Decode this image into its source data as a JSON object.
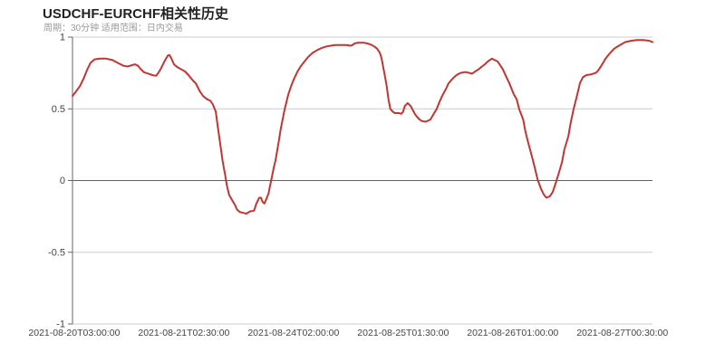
{
  "header": {
    "title": "USDCHF-EURCHF相关性历史",
    "subtitle": "周期：30分钟 适用范围：日内交易"
  },
  "chart_data": {
    "type": "line",
    "title": "USDCHF-EURCHF相关性历史",
    "subtitle": "周期：30分钟 适用范围：日内交易",
    "xlabel": "",
    "ylabel": "",
    "ylim": [
      -1,
      1
    ],
    "grid": true,
    "legend_position": "none",
    "y_ticks": [
      {
        "label": "1",
        "value": 1
      },
      {
        "label": "0.5",
        "value": 0.5
      },
      {
        "label": "0",
        "value": 0
      },
      {
        "label": "-0.5",
        "value": -0.5
      },
      {
        "label": "-1",
        "value": -1
      }
    ],
    "x_ticks": [
      {
        "label": "2021-08-20T03:00:00",
        "pos_pct": 0.3
      },
      {
        "label": "2021-08-21T02:30:00",
        "pos_pct": 19.2
      },
      {
        "label": "2021-08-24T02:00:00",
        "pos_pct": 38.1
      },
      {
        "label": "2021-08-25T01:30:00",
        "pos_pct": 57.0
      },
      {
        "label": "2021-08-26T01:00:00",
        "pos_pct": 75.9
      },
      {
        "label": "2021-08-27T00:30:00",
        "pos_pct": 94.8
      }
    ],
    "colors": {
      "line": "#c23531",
      "grid_light": "#cccccc",
      "grid_zero": "#616161",
      "axis": "#666666",
      "tick_label": "#444444",
      "title": "#222222",
      "subtitle": "#999999"
    },
    "series": [
      {
        "name": "USDCHF-EURCHF 相关性",
        "color": "#c23531",
        "points": [
          [
            0.0,
            0.59
          ],
          [
            0.6,
            0.62
          ],
          [
            1.3,
            0.66
          ],
          [
            1.9,
            0.71
          ],
          [
            2.5,
            0.77
          ],
          [
            3.1,
            0.82
          ],
          [
            3.8,
            0.845
          ],
          [
            4.7,
            0.85
          ],
          [
            5.8,
            0.85
          ],
          [
            6.9,
            0.84
          ],
          [
            7.8,
            0.82
          ],
          [
            8.8,
            0.8
          ],
          [
            9.5,
            0.795
          ],
          [
            10.3,
            0.805
          ],
          [
            10.8,
            0.81
          ],
          [
            11.3,
            0.8
          ],
          [
            11.7,
            0.78
          ],
          [
            12.3,
            0.755
          ],
          [
            13.1,
            0.745
          ],
          [
            13.8,
            0.735
          ],
          [
            14.4,
            0.73
          ],
          [
            14.8,
            0.75
          ],
          [
            15.3,
            0.785
          ],
          [
            15.9,
            0.835
          ],
          [
            16.4,
            0.87
          ],
          [
            16.7,
            0.875
          ],
          [
            17.0,
            0.855
          ],
          [
            17.5,
            0.81
          ],
          [
            18.1,
            0.79
          ],
          [
            18.8,
            0.775
          ],
          [
            19.4,
            0.76
          ],
          [
            20.0,
            0.735
          ],
          [
            20.6,
            0.705
          ],
          [
            21.3,
            0.675
          ],
          [
            21.9,
            0.625
          ],
          [
            22.5,
            0.59
          ],
          [
            23.1,
            0.57
          ],
          [
            23.8,
            0.555
          ],
          [
            24.2,
            0.53
          ],
          [
            24.7,
            0.48
          ],
          [
            25.0,
            0.39
          ],
          [
            25.3,
            0.305
          ],
          [
            25.6,
            0.22
          ],
          [
            25.9,
            0.13
          ],
          [
            26.3,
            0.045
          ],
          [
            26.6,
            -0.03
          ],
          [
            27.0,
            -0.1
          ],
          [
            27.5,
            -0.135
          ],
          [
            28.0,
            -0.17
          ],
          [
            28.4,
            -0.205
          ],
          [
            28.9,
            -0.22
          ],
          [
            29.4,
            -0.225
          ],
          [
            30.0,
            -0.23
          ],
          [
            30.6,
            -0.215
          ],
          [
            31.3,
            -0.21
          ],
          [
            31.7,
            -0.16
          ],
          [
            32.2,
            -0.12
          ],
          [
            32.5,
            -0.12
          ],
          [
            32.8,
            -0.15
          ],
          [
            33.1,
            -0.16
          ],
          [
            33.4,
            -0.13
          ],
          [
            33.8,
            -0.09
          ],
          [
            34.1,
            -0.03
          ],
          [
            34.4,
            0.03
          ],
          [
            34.7,
            0.09
          ],
          [
            35.0,
            0.14
          ],
          [
            35.3,
            0.21
          ],
          [
            35.6,
            0.28
          ],
          [
            35.9,
            0.36
          ],
          [
            36.3,
            0.44
          ],
          [
            36.6,
            0.5
          ],
          [
            36.9,
            0.55
          ],
          [
            37.2,
            0.6
          ],
          [
            37.7,
            0.66
          ],
          [
            38.1,
            0.7
          ],
          [
            38.8,
            0.76
          ],
          [
            39.4,
            0.8
          ],
          [
            40.0,
            0.83
          ],
          [
            40.6,
            0.86
          ],
          [
            41.4,
            0.89
          ],
          [
            42.2,
            0.91
          ],
          [
            43.0,
            0.925
          ],
          [
            43.8,
            0.935
          ],
          [
            44.5,
            0.94
          ],
          [
            45.3,
            0.945
          ],
          [
            46.3,
            0.945
          ],
          [
            47.2,
            0.945
          ],
          [
            48.0,
            0.94
          ],
          [
            48.3,
            0.945
          ],
          [
            48.6,
            0.955
          ],
          [
            49.1,
            0.96
          ],
          [
            49.7,
            0.96
          ],
          [
            50.3,
            0.96
          ],
          [
            50.9,
            0.955
          ],
          [
            51.6,
            0.945
          ],
          [
            52.0,
            0.935
          ],
          [
            52.5,
            0.92
          ],
          [
            53.0,
            0.89
          ],
          [
            53.3,
            0.85
          ],
          [
            53.6,
            0.785
          ],
          [
            53.9,
            0.72
          ],
          [
            54.2,
            0.65
          ],
          [
            54.5,
            0.56
          ],
          [
            54.8,
            0.5
          ],
          [
            55.2,
            0.48
          ],
          [
            55.6,
            0.47
          ],
          [
            56.3,
            0.47
          ],
          [
            56.7,
            0.465
          ],
          [
            57.0,
            0.48
          ],
          [
            57.3,
            0.52
          ],
          [
            57.8,
            0.54
          ],
          [
            58.3,
            0.52
          ],
          [
            59.1,
            0.46
          ],
          [
            59.7,
            0.43
          ],
          [
            60.2,
            0.415
          ],
          [
            60.9,
            0.41
          ],
          [
            61.7,
            0.425
          ],
          [
            62.2,
            0.46
          ],
          [
            62.8,
            0.5
          ],
          [
            63.3,
            0.55
          ],
          [
            63.8,
            0.595
          ],
          [
            64.4,
            0.64
          ],
          [
            64.8,
            0.675
          ],
          [
            65.3,
            0.7
          ],
          [
            65.9,
            0.725
          ],
          [
            66.4,
            0.74
          ],
          [
            66.9,
            0.75
          ],
          [
            67.5,
            0.755
          ],
          [
            68.0,
            0.755
          ],
          [
            68.4,
            0.75
          ],
          [
            68.9,
            0.745
          ],
          [
            69.4,
            0.76
          ],
          [
            70.0,
            0.775
          ],
          [
            70.6,
            0.795
          ],
          [
            71.1,
            0.81
          ],
          [
            71.6,
            0.83
          ],
          [
            72.3,
            0.85
          ],
          [
            72.8,
            0.84
          ],
          [
            73.3,
            0.83
          ],
          [
            73.8,
            0.8
          ],
          [
            74.2,
            0.775
          ],
          [
            74.7,
            0.73
          ],
          [
            75.3,
            0.68
          ],
          [
            75.8,
            0.63
          ],
          [
            76.1,
            0.6
          ],
          [
            76.6,
            0.565
          ],
          [
            77.0,
            0.5
          ],
          [
            77.7,
            0.425
          ],
          [
            78.1,
            0.34
          ],
          [
            78.6,
            0.26
          ],
          [
            79.2,
            0.17
          ],
          [
            79.7,
            0.09
          ],
          [
            80.2,
            0.005
          ],
          [
            80.8,
            -0.06
          ],
          [
            81.3,
            -0.1
          ],
          [
            81.7,
            -0.12
          ],
          [
            82.3,
            -0.11
          ],
          [
            82.8,
            -0.08
          ],
          [
            83.3,
            -0.02
          ],
          [
            83.9,
            0.06
          ],
          [
            84.4,
            0.13
          ],
          [
            84.8,
            0.215
          ],
          [
            85.5,
            0.31
          ],
          [
            85.9,
            0.405
          ],
          [
            86.4,
            0.5
          ],
          [
            87.0,
            0.595
          ],
          [
            87.5,
            0.68
          ],
          [
            88.0,
            0.72
          ],
          [
            88.6,
            0.735
          ],
          [
            89.4,
            0.74
          ],
          [
            90.2,
            0.75
          ],
          [
            90.6,
            0.765
          ],
          [
            91.1,
            0.795
          ],
          [
            91.9,
            0.85
          ],
          [
            92.7,
            0.89
          ],
          [
            93.4,
            0.92
          ],
          [
            94.2,
            0.94
          ],
          [
            95.3,
            0.965
          ],
          [
            96.4,
            0.975
          ],
          [
            97.3,
            0.98
          ],
          [
            98.4,
            0.98
          ],
          [
            99.4,
            0.975
          ],
          [
            100.0,
            0.965
          ]
        ]
      }
    ]
  }
}
